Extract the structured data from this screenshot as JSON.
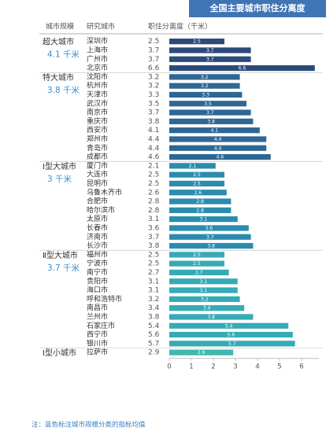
{
  "chart_data": {
    "type": "bar",
    "orientation": "horizontal",
    "title": "全国主要城市职住分离度",
    "column_headers": [
      "城市规模",
      "研究城市",
      "职住分离度（千米）"
    ],
    "groups": [
      {
        "name": "超大城市",
        "mean_label": "4.1 千米",
        "color": "#2b4a7a",
        "categories": [
          "深圳市",
          "上海市",
          "广州市",
          "北京市"
        ],
        "values": [
          2.5,
          3.7,
          3.7,
          6.6
        ]
      },
      {
        "name": "特大城市",
        "mean_label": "3.8 千米",
        "color": "#2e6794",
        "categories": [
          "沈阳市",
          "杭州市",
          "天津市",
          "武汉市",
          "南京市",
          "重庆市",
          "西安市",
          "郑州市",
          "青岛市",
          "成都市"
        ],
        "values": [
          3.2,
          3.2,
          3.3,
          3.5,
          3.7,
          3.8,
          4.1,
          4.4,
          4.4,
          4.6
        ]
      },
      {
        "name": "Ⅰ型大城市",
        "mean_label": "3 千米",
        "color": "#2a8cae",
        "categories": [
          "厦门市",
          "大连市",
          "昆明市",
          "乌鲁木齐市",
          "合肥市",
          "哈尔滨市",
          "太原市",
          "长春市",
          "济南市",
          "长沙市"
        ],
        "values": [
          2.1,
          2.5,
          2.5,
          2.6,
          2.8,
          2.8,
          3.1,
          3.6,
          3.7,
          3.8
        ]
      },
      {
        "name": "Ⅱ型大城市",
        "mean_label": "3.7 千米",
        "color": "#36aab5",
        "categories": [
          "福州市",
          "宁波市",
          "南宁市",
          "贵阳市",
          "海口市",
          "呼和浩特市",
          "南昌市",
          "兰州市",
          "石家庄市",
          "西宁市",
          "银川市"
        ],
        "values": [
          2.5,
          2.5,
          2.7,
          3.1,
          3.1,
          3.2,
          3.4,
          3.8,
          5.4,
          5.6,
          5.7
        ]
      },
      {
        "name": "Ⅰ型小城市",
        "color": "#3fb8ae",
        "categories": [
          "拉萨市"
        ],
        "values": [
          2.9
        ]
      }
    ],
    "xlim": [
      0,
      7
    ],
    "xticks": [
      0,
      1,
      2,
      3,
      4,
      5,
      6
    ],
    "note": "注：蓝色标注城市规模分类的指标均值"
  }
}
